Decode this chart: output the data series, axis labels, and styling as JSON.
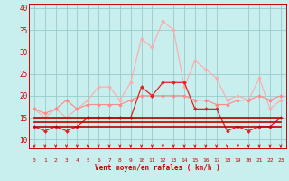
{
  "background_color": "#c8eeee",
  "grid_color": "#99cccc",
  "xlabel": "Vent moyen/en rafales ( km/h )",
  "xlabel_color": "#cc0000",
  "tick_color": "#cc0000",
  "arrow_color": "#cc0000",
  "xlim": [
    -0.5,
    23.5
  ],
  "ylim": [
    8,
    41
  ],
  "yticks": [
    10,
    15,
    20,
    25,
    30,
    35,
    40
  ],
  "xticks": [
    0,
    1,
    2,
    3,
    4,
    5,
    6,
    7,
    8,
    9,
    10,
    11,
    12,
    13,
    14,
    15,
    16,
    17,
    18,
    19,
    20,
    21,
    22,
    23
  ],
  "series": [
    {
      "color": "#ffaaaa",
      "linewidth": 0.8,
      "marker": "D",
      "markersize": 2.0,
      "data": [
        17,
        15,
        17,
        15,
        17,
        19,
        22,
        22,
        19,
        23,
        33,
        31,
        37,
        35,
        22,
        28,
        26,
        24,
        19,
        20,
        19,
        24,
        17,
        19
      ]
    },
    {
      "color": "#ff8888",
      "linewidth": 0.8,
      "marker": "D",
      "markersize": 2.0,
      "data": [
        17,
        16,
        17,
        19,
        17,
        18,
        18,
        18,
        18,
        19,
        20,
        20,
        20,
        20,
        20,
        19,
        19,
        18,
        18,
        19,
        19,
        20,
        19,
        20
      ]
    },
    {
      "color": "#dd2222",
      "linewidth": 0.9,
      "marker": "D",
      "markersize": 2.0,
      "data": [
        13,
        12,
        13,
        12,
        13,
        15,
        15,
        15,
        15,
        15,
        22,
        20,
        23,
        23,
        23,
        17,
        17,
        17,
        12,
        13,
        12,
        13,
        13,
        15
      ]
    },
    {
      "color": "#bb0000",
      "linewidth": 1.2,
      "marker": null,
      "markersize": 0,
      "data": [
        13,
        13,
        13,
        13,
        13,
        13,
        13,
        13,
        13,
        13,
        13,
        13,
        13,
        13,
        13,
        13,
        13,
        13,
        13,
        13,
        13,
        13,
        13,
        13
      ]
    },
    {
      "color": "#bb0000",
      "linewidth": 1.2,
      "marker": null,
      "markersize": 0,
      "data": [
        14,
        14,
        14,
        14,
        14,
        14,
        14,
        14,
        14,
        14,
        14,
        14,
        14,
        14,
        14,
        14,
        14,
        14,
        14,
        14,
        14,
        14,
        14,
        14
      ]
    },
    {
      "color": "#bb0000",
      "linewidth": 1.2,
      "marker": null,
      "markersize": 0,
      "data": [
        15,
        15,
        15,
        15,
        15,
        15,
        15,
        15,
        15,
        15,
        15,
        15,
        15,
        15,
        15,
        15,
        15,
        15,
        15,
        15,
        15,
        15,
        15,
        15
      ]
    }
  ]
}
